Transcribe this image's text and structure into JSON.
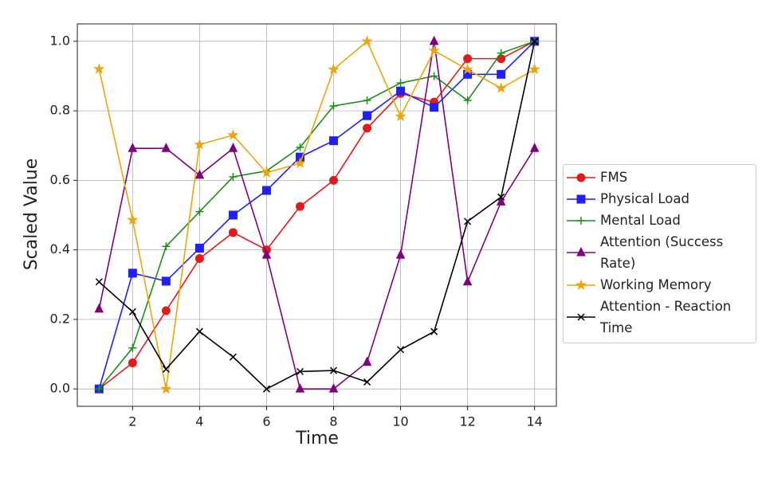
{
  "chart_data": {
    "type": "line",
    "xlabel": "Time",
    "ylabel": "Scaled Value",
    "x": [
      1,
      2,
      3,
      4,
      5,
      6,
      7,
      8,
      9,
      10,
      11,
      12,
      13,
      14
    ],
    "xlim": [
      0.35,
      14.65
    ],
    "ylim": [
      -0.05,
      1.05
    ],
    "xticks": [
      2,
      4,
      6,
      8,
      10,
      12,
      14
    ],
    "yticks": [
      {
        "value": 0,
        "label": "0.0"
      },
      {
        "value": 0.2,
        "label": "0.2"
      },
      {
        "value": 0.4,
        "label": "0.4"
      },
      {
        "value": 0.6,
        "label": "0.6"
      },
      {
        "value": 0.8,
        "label": "0.8"
      },
      {
        "value": 1,
        "label": "1.0"
      }
    ],
    "grid": true,
    "legend": "outside right",
    "series": [
      {
        "name": "FMS",
        "color": "#e31a1c",
        "marker": "circle",
        "values": [
          0,
          0.075,
          0.225,
          0.375,
          0.45,
          0.4,
          0.525,
          0.6,
          0.75,
          0.85,
          0.825,
          0.95,
          0.95,
          1.0
        ]
      },
      {
        "name": "Physical Load",
        "color": "#1f1fff",
        "marker": "square",
        "values": [
          0,
          0.333,
          0.31,
          0.405,
          0.5,
          0.571,
          0.667,
          0.714,
          0.786,
          0.857,
          0.81,
          0.905,
          0.905,
          1.0
        ]
      },
      {
        "name": "Mental Load",
        "color": "#1e8c1e",
        "marker": "plus",
        "values": [
          0,
          0.118,
          0.41,
          0.51,
          0.61,
          0.627,
          0.695,
          0.814,
          0.83,
          0.88,
          0.9,
          0.83,
          0.966,
          1.0
        ]
      },
      {
        "name": "Attention (Success Rate)",
        "color": "#800080",
        "marker": "triangle",
        "values": [
          0.23,
          0.692,
          0.692,
          0.615,
          0.692,
          0.385,
          0,
          0,
          0.077,
          0.385,
          1.0,
          0.308,
          0.538,
          0.692
        ]
      },
      {
        "name": "Working Memory",
        "color": "#f0a30a",
        "marker": "star",
        "values": [
          0.92,
          0.486,
          0,
          0.703,
          0.73,
          0.622,
          0.649,
          0.919,
          1.0,
          0.784,
          0.973,
          0.919,
          0.865,
          0.919
        ]
      },
      {
        "name": "Attention - Reaction Time",
        "color": "#000000",
        "marker": "x",
        "values": [
          0.308,
          0.222,
          0.057,
          0.165,
          0.092,
          0,
          0.05,
          0.053,
          0.02,
          0.113,
          0.165,
          0.482,
          0.552,
          1.0
        ]
      }
    ]
  }
}
